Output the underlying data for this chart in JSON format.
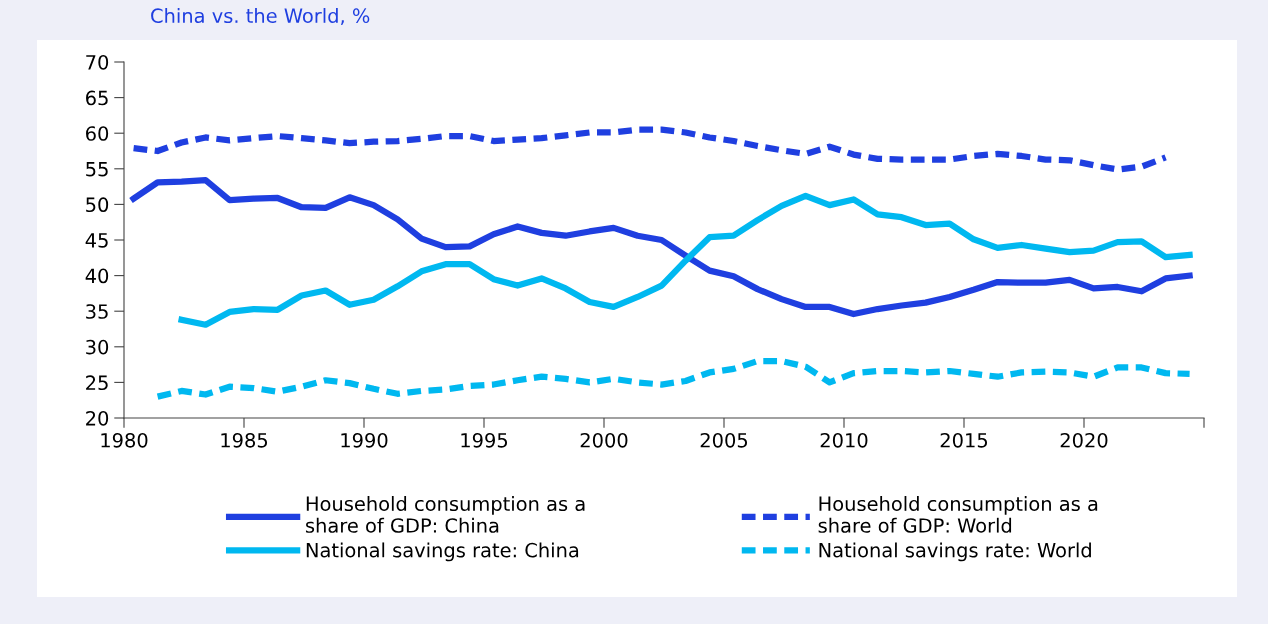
{
  "chart_data": {
    "type": "line",
    "title": "China vs. the World, %",
    "x": [
      1980.4,
      1981.4,
      1982.4,
      1983.4,
      1984.4,
      1985.4,
      1986.4,
      1987.4,
      1988.4,
      1989.4,
      1990.4,
      1991.4,
      1992.4,
      1993.4,
      1994.4,
      1995.4,
      1996.4,
      1997.4,
      1998.4,
      1999.4,
      2000.4,
      2001.4,
      2002.4,
      2003.4,
      2004.4,
      2005.4,
      2006.4,
      2007.4,
      2008.4,
      2009.4,
      2010.4,
      2011.4,
      2012.4,
      2013.4,
      2014.4,
      2015.4,
      2016.4,
      2017.4,
      2018.4,
      2019.4,
      2020.4,
      2021.4,
      2022.4,
      2023.4,
      2024.4
    ],
    "series": [
      {
        "name": "Household consumption as a\nshare of GDP: China",
        "color": "#1f3fe0",
        "line_style": "solid",
        "values": [
          50.8,
          53.1,
          53.2,
          53.4,
          50.6,
          50.8,
          50.9,
          49.6,
          49.5,
          51.0,
          49.9,
          47.9,
          45.2,
          44.0,
          44.1,
          45.8,
          46.9,
          46.0,
          45.6,
          46.2,
          46.7,
          45.6,
          45.0,
          42.8,
          40.7,
          39.9,
          38.1,
          36.7,
          35.6,
          35.6,
          34.6,
          35.3,
          35.8,
          36.2,
          37.0,
          38.0,
          39.1,
          39.0,
          39.0,
          39.4,
          38.2,
          38.4,
          37.8,
          39.6,
          40.0
        ]
      },
      {
        "name": "National savings rate: China",
        "color": "#00b8f0",
        "line_style": "solid",
        "values": [
          null,
          null,
          33.8,
          33.1,
          34.9,
          35.3,
          35.2,
          37.2,
          37.9,
          35.9,
          36.6,
          38.5,
          40.6,
          41.6,
          41.6,
          39.5,
          38.6,
          39.6,
          38.2,
          36.3,
          35.6,
          37.0,
          38.6,
          42.1,
          45.4,
          45.6,
          47.8,
          49.8,
          51.2,
          49.9,
          50.7,
          48.6,
          48.2,
          47.1,
          47.3,
          45.1,
          43.9,
          44.3,
          43.8,
          43.3,
          43.5,
          44.7,
          44.8,
          42.6,
          42.9
        ]
      },
      {
        "name": "Household consumption as a\nshare of GDP: World",
        "color": "#1f3fe0",
        "line_style": "dashed",
        "values": [
          57.9,
          57.5,
          58.7,
          59.4,
          59.0,
          59.3,
          59.6,
          59.3,
          59.0,
          58.6,
          58.8,
          58.9,
          59.2,
          59.6,
          59.6,
          58.9,
          59.1,
          59.3,
          59.7,
          60.1,
          60.1,
          60.5,
          60.5,
          60.1,
          59.4,
          58.9,
          58.2,
          57.6,
          57.1,
          58.1,
          57.0,
          56.4,
          56.3,
          56.3,
          56.3,
          56.8,
          57.1,
          56.8,
          56.3,
          56.2,
          55.5,
          54.9,
          55.3,
          56.6,
          null
        ]
      },
      {
        "name": "National savings rate: World",
        "color": "#00b8f0",
        "line_style": "dashed",
        "values": [
          null,
          23.0,
          23.8,
          23.3,
          24.4,
          24.2,
          23.7,
          24.4,
          25.3,
          24.9,
          24.1,
          23.4,
          23.8,
          24.0,
          24.5,
          24.7,
          25.3,
          25.8,
          25.5,
          25.0,
          25.5,
          25.0,
          24.7,
          25.2,
          26.4,
          26.9,
          28.0,
          28.0,
          27.2,
          25.0,
          26.3,
          26.6,
          26.6,
          26.4,
          26.6,
          26.2,
          25.8,
          26.4,
          26.5,
          26.4,
          25.8,
          27.1,
          27.1,
          26.3,
          26.2
        ]
      }
    ],
    "xlim": [
      1980,
      2025
    ],
    "xticks": [
      1980,
      1985,
      1990,
      1995,
      2000,
      2005,
      2010,
      2015,
      2020,
      {
        "value": 2025,
        "label": null
      }
    ],
    "ylim": [
      20,
      70
    ],
    "yticks": [
      20,
      25,
      30,
      35,
      40,
      45,
      50,
      55,
      60,
      65,
      70
    ],
    "grid": false,
    "legend": "bottom",
    "marker": "none"
  }
}
